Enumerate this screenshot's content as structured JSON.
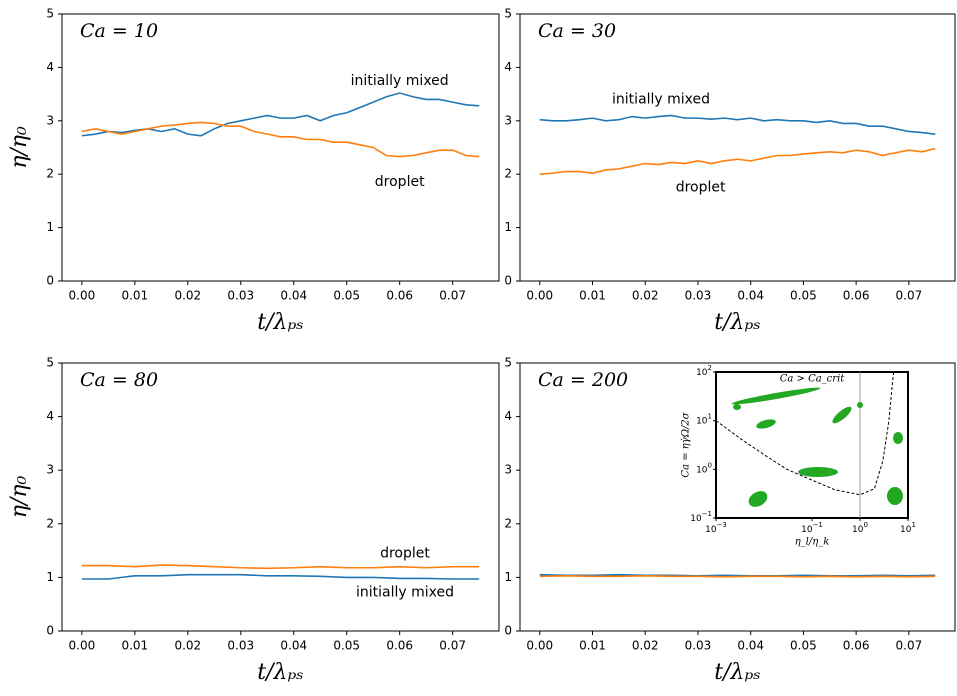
{
  "chart_data": [
    {
      "type": "line",
      "title": "Ca = 10",
      "x_label": "t/λₚₛ",
      "y_label": "η/η₀",
      "x": [
        0,
        0.0025,
        0.005,
        0.0075,
        0.01,
        0.0125,
        0.015,
        0.0175,
        0.02,
        0.0225,
        0.025,
        0.0275,
        0.03,
        0.0325,
        0.035,
        0.0375,
        0.04,
        0.0425,
        0.045,
        0.0475,
        0.05,
        0.0525,
        0.055,
        0.0575,
        0.06,
        0.0625,
        0.065,
        0.0675,
        0.07,
        0.0725,
        0.075
      ],
      "series": [
        {
          "name": "initially mixed",
          "color": "#1f77b4",
          "values": [
            2.72,
            2.75,
            2.8,
            2.78,
            2.82,
            2.85,
            2.8,
            2.85,
            2.75,
            2.72,
            2.85,
            2.95,
            3.0,
            3.05,
            3.1,
            3.05,
            3.05,
            3.1,
            3.0,
            3.1,
            3.15,
            3.25,
            3.35,
            3.45,
            3.52,
            3.45,
            3.4,
            3.4,
            3.35,
            3.3,
            3.28
          ]
        },
        {
          "name": "droplet",
          "color": "#ff7f0e",
          "values": [
            2.8,
            2.85,
            2.8,
            2.75,
            2.8,
            2.85,
            2.9,
            2.92,
            2.95,
            2.97,
            2.95,
            2.9,
            2.9,
            2.8,
            2.75,
            2.7,
            2.7,
            2.65,
            2.65,
            2.6,
            2.6,
            2.55,
            2.5,
            2.35,
            2.33,
            2.35,
            2.4,
            2.45,
            2.45,
            2.35,
            2.33
          ]
        }
      ],
      "xlim": [
        -0.00375,
        0.07875
      ],
      "ylim": [
        0,
        5
      ],
      "xticks": [
        {
          "value": 0,
          "label": "0.00"
        },
        {
          "value": 0.01,
          "label": "0.01"
        },
        {
          "value": 0.02,
          "label": "0.02"
        },
        {
          "value": 0.03,
          "label": "0.03"
        },
        {
          "value": 0.04,
          "label": "0.04"
        },
        {
          "value": 0.05,
          "label": "0.05"
        },
        {
          "value": 0.06,
          "label": "0.06"
        },
        {
          "value": 0.07,
          "label": "0.07"
        }
      ],
      "yticks": [
        0,
        1,
        2,
        3,
        4,
        5
      ]
    },
    {
      "type": "line",
      "title": "Ca = 30",
      "x_label": "t/λₚₛ",
      "y_label": null,
      "x": [
        0,
        0.0025,
        0.005,
        0.0075,
        0.01,
        0.0125,
        0.015,
        0.0175,
        0.02,
        0.0225,
        0.025,
        0.0275,
        0.03,
        0.0325,
        0.035,
        0.0375,
        0.04,
        0.0425,
        0.045,
        0.0475,
        0.05,
        0.0525,
        0.055,
        0.0575,
        0.06,
        0.0625,
        0.065,
        0.0675,
        0.07,
        0.0725,
        0.075
      ],
      "series": [
        {
          "name": "initially mixed",
          "color": "#1f77b4",
          "values": [
            3.02,
            3.0,
            3.0,
            3.02,
            3.05,
            3.0,
            3.02,
            3.08,
            3.05,
            3.08,
            3.1,
            3.05,
            3.05,
            3.03,
            3.05,
            3.02,
            3.05,
            3.0,
            3.02,
            3.0,
            3.0,
            2.97,
            3.0,
            2.95,
            2.95,
            2.9,
            2.9,
            2.85,
            2.8,
            2.78,
            2.75
          ]
        },
        {
          "name": "droplet",
          "color": "#ff7f0e",
          "values": [
            2.0,
            2.02,
            2.05,
            2.05,
            2.02,
            2.08,
            2.1,
            2.15,
            2.2,
            2.18,
            2.22,
            2.2,
            2.25,
            2.2,
            2.25,
            2.28,
            2.25,
            2.3,
            2.35,
            2.35,
            2.38,
            2.4,
            2.42,
            2.4,
            2.45,
            2.42,
            2.35,
            2.4,
            2.45,
            2.42,
            2.48
          ]
        }
      ],
      "xlim": [
        -0.00375,
        0.07875
      ],
      "ylim": [
        0,
        5
      ],
      "xticks": [
        {
          "value": 0,
          "label": "0.00"
        },
        {
          "value": 0.01,
          "label": "0.01"
        },
        {
          "value": 0.02,
          "label": "0.02"
        },
        {
          "value": 0.03,
          "label": "0.03"
        },
        {
          "value": 0.04,
          "label": "0.04"
        },
        {
          "value": 0.05,
          "label": "0.05"
        },
        {
          "value": 0.06,
          "label": "0.06"
        },
        {
          "value": 0.07,
          "label": "0.07"
        }
      ],
      "yticks": [
        0,
        1,
        2,
        3,
        4,
        5
      ]
    },
    {
      "type": "line",
      "title": "Ca = 80",
      "x_label": "t/λₚₛ",
      "y_label": "η/η₀",
      "x": [
        0,
        0.005,
        0.01,
        0.015,
        0.02,
        0.025,
        0.03,
        0.035,
        0.04,
        0.045,
        0.05,
        0.055,
        0.06,
        0.065,
        0.07,
        0.075
      ],
      "series": [
        {
          "name": "droplet",
          "color": "#ff7f0e",
          "values": [
            1.22,
            1.22,
            1.2,
            1.23,
            1.22,
            1.2,
            1.18,
            1.17,
            1.18,
            1.2,
            1.18,
            1.18,
            1.2,
            1.18,
            1.2,
            1.2
          ]
        },
        {
          "name": "initially mixed",
          "color": "#1f77b4",
          "values": [
            0.97,
            0.97,
            1.03,
            1.03,
            1.05,
            1.05,
            1.05,
            1.03,
            1.03,
            1.02,
            1.0,
            1.0,
            0.98,
            0.98,
            0.97,
            0.97
          ]
        }
      ],
      "xlim": [
        -0.00375,
        0.07875
      ],
      "ylim": [
        0,
        5
      ],
      "xticks": [
        {
          "value": 0,
          "label": "0.00"
        },
        {
          "value": 0.01,
          "label": "0.01"
        },
        {
          "value": 0.02,
          "label": "0.02"
        },
        {
          "value": 0.03,
          "label": "0.03"
        },
        {
          "value": 0.04,
          "label": "0.04"
        },
        {
          "value": 0.05,
          "label": "0.05"
        },
        {
          "value": 0.06,
          "label": "0.06"
        },
        {
          "value": 0.07,
          "label": "0.07"
        }
      ],
      "yticks": [
        0,
        1,
        2,
        3,
        4,
        5
      ]
    },
    {
      "type": "line",
      "title": "Ca = 200",
      "x_label": "t/λₚₛ",
      "y_label": null,
      "x": [
        0,
        0.005,
        0.01,
        0.015,
        0.02,
        0.025,
        0.03,
        0.035,
        0.04,
        0.045,
        0.05,
        0.055,
        0.06,
        0.065,
        0.07,
        0.075
      ],
      "series": [
        {
          "name": null,
          "color": "#1f77b4",
          "values": [
            1.05,
            1.04,
            1.04,
            1.05,
            1.04,
            1.04,
            1.03,
            1.04,
            1.03,
            1.03,
            1.04,
            1.03,
            1.03,
            1.04,
            1.03,
            1.04
          ]
        },
        {
          "name": null,
          "color": "#ff7f0e",
          "values": [
            1.02,
            1.03,
            1.02,
            1.02,
            1.03,
            1.02,
            1.02,
            1.01,
            1.02,
            1.02,
            1.01,
            1.02,
            1.01,
            1.02,
            1.01,
            1.02
          ]
        }
      ],
      "xlim": [
        -0.00375,
        0.07875
      ],
      "ylim": [
        0,
        5
      ],
      "xticks": [
        {
          "value": 0,
          "label": "0.00"
        },
        {
          "value": 0.01,
          "label": "0.01"
        },
        {
          "value": 0.02,
          "label": "0.02"
        },
        {
          "value": 0.03,
          "label": "0.03"
        },
        {
          "value": 0.04,
          "label": "0.04"
        },
        {
          "value": 0.05,
          "label": "0.05"
        },
        {
          "value": 0.06,
          "label": "0.06"
        },
        {
          "value": 0.07,
          "label": "0.07"
        }
      ],
      "yticks": [
        0,
        1,
        2,
        3,
        4,
        5
      ]
    },
    {
      "type": "inset",
      "title": "Ca > Ca_crit",
      "x_label": "η_l/η_k",
      "y_label": "Ca = ηγ̇Ω/2σ",
      "log_scale": true,
      "x": [
        0.001,
        0.003,
        0.01,
        0.03,
        0.1,
        0.3,
        1,
        2,
        3,
        4,
        5
      ],
      "values": [
        10,
        4.5,
        2,
        1.0,
        0.6,
        0.38,
        0.3,
        0.4,
        1.5,
        10,
        100
      ],
      "color": "#000000",
      "xlim": [
        0.001,
        10
      ],
      "ylim": [
        0.1,
        100
      ],
      "vline": 1,
      "xticks": [
        {
          "value": 0.001,
          "label": "10",
          "exponent": "−3"
        },
        {
          "value": 0.1,
          "label": "10",
          "exponent": "−1"
        },
        {
          "value": 1,
          "label": "10",
          "exponent": "0"
        },
        {
          "value": 10,
          "label": "10",
          "exponent": "1"
        }
      ],
      "yticks": [
        {
          "value": 0.1,
          "label": "10",
          "exponent": "−1"
        },
        {
          "value": 1,
          "label": "10",
          "exponent": "0"
        },
        {
          "value": 10,
          "label": "10",
          "exponent": "1"
        },
        {
          "value": 100,
          "label": "10",
          "exponent": "2"
        }
      ]
    }
  ],
  "annotations": [
    [
      "initially mixed",
      "droplet"
    ],
    [
      "initially mixed",
      "droplet"
    ],
    [
      "droplet",
      "initially mixed"
    ],
    []
  ]
}
